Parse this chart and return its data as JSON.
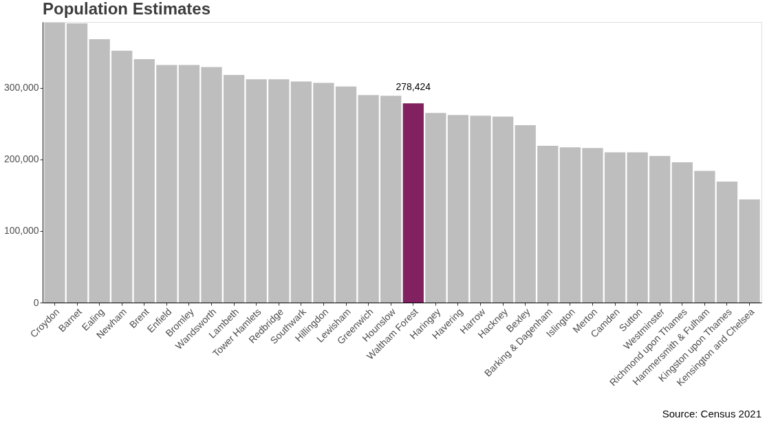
{
  "chart_data": {
    "type": "bar",
    "title": "Population Estimates",
    "categories": [
      "Croydon",
      "Barnet",
      "Ealing",
      "Newham",
      "Brent",
      "Enfield",
      "Bromley",
      "Wandsworth",
      "Lambeth",
      "Tower Hamlets",
      "Redbridge",
      "Southwark",
      "Hillingdon",
      "Lewisham",
      "Greenwich",
      "Hounslow",
      "Waltham Forest",
      "Haringey",
      "Havering",
      "Harrow",
      "Hackney",
      "Bexley",
      "Barking & Dagenham",
      "Islington",
      "Merton",
      "Camden",
      "Sutton",
      "Westminster",
      "Richmond upon Thames",
      "Hammersmith & Fulham",
      "Kingston upon Thames",
      "Kensington and Chelsea"
    ],
    "values": [
      391000,
      390000,
      368000,
      352000,
      340000,
      332000,
      332000,
      329000,
      318000,
      312000,
      312000,
      309000,
      307000,
      302000,
      290000,
      289000,
      278424,
      265000,
      262000,
      261000,
      260000,
      248000,
      219000,
      217000,
      216000,
      210000,
      210000,
      205000,
      196000,
      184000,
      169000,
      144000
    ],
    "colors": [
      "#bebebe",
      "#bebebe",
      "#bebebe",
      "#bebebe",
      "#bebebe",
      "#bebebe",
      "#bebebe",
      "#bebebe",
      "#bebebe",
      "#bebebe",
      "#bebebe",
      "#bebebe",
      "#bebebe",
      "#bebebe",
      "#bebebe",
      "#bebebe",
      "#82215f",
      "#bebebe",
      "#bebebe",
      "#bebebe",
      "#bebebe",
      "#bebebe",
      "#bebebe",
      "#bebebe",
      "#bebebe",
      "#bebebe",
      "#bebebe",
      "#bebebe",
      "#bebebe",
      "#bebebe",
      "#bebebe",
      "#bebebe"
    ],
    "value_labels": [
      null,
      null,
      null,
      null,
      null,
      null,
      null,
      null,
      null,
      null,
      null,
      null,
      null,
      null,
      null,
      null,
      "278,424",
      null,
      null,
      null,
      null,
      null,
      null,
      null,
      null,
      null,
      null,
      null,
      null,
      null,
      null,
      null
    ],
    "ylim": [
      0,
      392000
    ],
    "yticks": [
      0,
      {
        "value": 100000,
        "label": "100,000"
      },
      {
        "value": 200000,
        "label": "200,000"
      },
      {
        "value": 300000,
        "label": "300,000"
      }
    ],
    "grid": false,
    "annotations": [
      "Source: Census 2021"
    ]
  }
}
